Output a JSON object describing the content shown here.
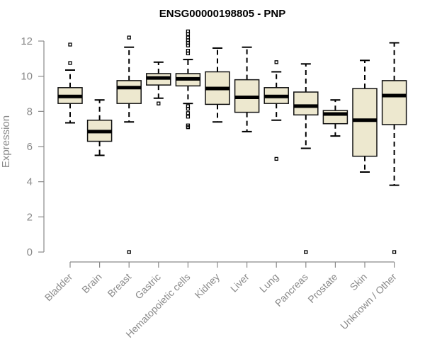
{
  "chart_data": {
    "type": "boxplot",
    "title": "ENSG00000198805 - PNP",
    "xlabel": "",
    "ylabel": "Expression",
    "ylim": [
      0,
      12.5
    ],
    "yticks": [
      0,
      2,
      4,
      6,
      8,
      10,
      12
    ],
    "box_color": "#EDE8CF",
    "categories": [
      "Bladder",
      "Brain",
      "Breast",
      "Gastric",
      "Hematopoietic cells",
      "Kidney",
      "Liver",
      "Lung",
      "Pancreas",
      "Prostate",
      "Skin",
      "Unknown / Other"
    ],
    "boxes": [
      {
        "min": 7.35,
        "q1": 8.45,
        "median": 8.85,
        "q3": 9.35,
        "max": 10.35,
        "outliers": [
          10.75,
          11.8
        ]
      },
      {
        "min": 5.5,
        "q1": 6.3,
        "median": 6.85,
        "q3": 7.5,
        "max": 8.65,
        "outliers": []
      },
      {
        "min": 7.4,
        "q1": 8.45,
        "median": 9.35,
        "q3": 9.75,
        "max": 11.65,
        "outliers": [
          0,
          12.2
        ]
      },
      {
        "min": 8.75,
        "q1": 9.5,
        "median": 9.9,
        "q3": 10.15,
        "max": 10.8,
        "outliers": [
          8.45
        ]
      },
      {
        "min": 8.45,
        "q1": 9.45,
        "median": 9.85,
        "q3": 10.15,
        "max": 10.95,
        "outliers": [
          7.1,
          7.2,
          7.7,
          7.9,
          8.15,
          8.3,
          11.3,
          11.45,
          11.75,
          11.9,
          12.05,
          12.2,
          12.4,
          12.55
        ]
      },
      {
        "min": 7.4,
        "q1": 8.4,
        "median": 9.3,
        "q3": 10.25,
        "max": 11.6,
        "outliers": []
      },
      {
        "min": 6.85,
        "q1": 7.95,
        "median": 8.8,
        "q3": 9.8,
        "max": 11.65,
        "outliers": []
      },
      {
        "min": 7.5,
        "q1": 8.45,
        "median": 8.85,
        "q3": 9.35,
        "max": 10.25,
        "outliers": [
          5.3,
          10.8
        ]
      },
      {
        "min": 5.9,
        "q1": 7.8,
        "median": 8.3,
        "q3": 9.1,
        "max": 10.7,
        "outliers": [
          0
        ]
      },
      {
        "min": 6.6,
        "q1": 7.3,
        "median": 7.85,
        "q3": 8.05,
        "max": 8.65,
        "outliers": []
      },
      {
        "min": 4.55,
        "q1": 5.45,
        "median": 7.5,
        "q3": 9.3,
        "max": 10.9,
        "outliers": []
      },
      {
        "min": 3.8,
        "q1": 7.25,
        "median": 8.9,
        "q3": 9.75,
        "max": 11.9,
        "outliers": [
          0
        ]
      }
    ]
  }
}
